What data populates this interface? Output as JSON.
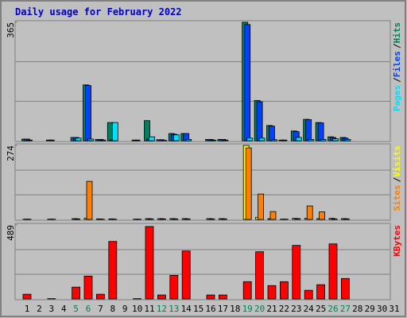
{
  "chart_data": [
    {
      "type": "bar",
      "title": "Daily usage for February 2022",
      "legend_separator": "/",
      "ylim": [
        0,
        365
      ],
      "yticks": [
        365
      ],
      "series": [
        {
          "name": "Hits",
          "color": "#00805c",
          "values": [
            5,
            0,
            2,
            0,
            10,
            172,
            4,
            56,
            0,
            2,
            62,
            3,
            22,
            22,
            0,
            4,
            4,
            0,
            365,
            124,
            47,
            2,
            30,
            66,
            56,
            12,
            10,
            0,
            0,
            0,
            0
          ]
        },
        {
          "name": "Files",
          "color": "#0040ff",
          "values": [
            5,
            0,
            2,
            0,
            10,
            170,
            4,
            3,
            0,
            2,
            5,
            3,
            20,
            22,
            0,
            4,
            4,
            0,
            358,
            120,
            45,
            2,
            28,
            65,
            55,
            10,
            8,
            0,
            0,
            0,
            0
          ]
        },
        {
          "name": "Pages",
          "color": "#00e0ff",
          "values": [
            2,
            0,
            0,
            0,
            8,
            5,
            2,
            56,
            0,
            0,
            12,
            1,
            18,
            4,
            0,
            2,
            2,
            0,
            8,
            8,
            3,
            0,
            10,
            4,
            4,
            6,
            4,
            0,
            0,
            0,
            0
          ]
        }
      ]
    },
    {
      "type": "bar",
      "ylim": [
        0,
        274
      ],
      "yticks": [
        274
      ],
      "series": [
        {
          "name": "Visits",
          "color": "#ffff00",
          "values": [
            1,
            0,
            1,
            0,
            3,
            5,
            2,
            2,
            0,
            1,
            3,
            3,
            3,
            3,
            0,
            3,
            3,
            0,
            274,
            8,
            3,
            1,
            4,
            4,
            3,
            4,
            3,
            0,
            0,
            0,
            0
          ]
        },
        {
          "name": "Sites",
          "color": "#ff8000",
          "values": [
            1,
            0,
            1,
            0,
            2,
            141,
            1,
            1,
            0,
            1,
            2,
            2,
            2,
            2,
            0,
            2,
            2,
            0,
            265,
            94,
            29,
            1,
            3,
            50,
            28,
            2,
            2,
            0,
            0,
            0,
            0
          ]
        }
      ]
    },
    {
      "type": "bar",
      "ylim": [
        0,
        489
      ],
      "yticks": [
        489
      ],
      "categories": [
        "1",
        "2",
        "3",
        "4",
        "5",
        "6",
        "7",
        "8",
        "9",
        "10",
        "11",
        "12",
        "13",
        "14",
        "15",
        "16",
        "17",
        "18",
        "19",
        "20",
        "21",
        "22",
        "23",
        "24",
        "25",
        "26",
        "27",
        "28",
        "29",
        "30",
        "31"
      ],
      "highlight_categories": [
        "5",
        "6",
        "12",
        "13",
        "19",
        "20",
        "26",
        "27"
      ],
      "highlight_color": "#00805c",
      "series": [
        {
          "name": "KBytes",
          "color": "#ff0000",
          "values": [
            31,
            0,
            2,
            0,
            78,
            151,
            31,
            380,
            0,
            2,
            479,
            26,
            156,
            317,
            0,
            26,
            26,
            0,
            114,
            312,
            88,
            114,
            354,
            57,
            94,
            364,
            135,
            0,
            0,
            0,
            0
          ]
        }
      ]
    }
  ]
}
